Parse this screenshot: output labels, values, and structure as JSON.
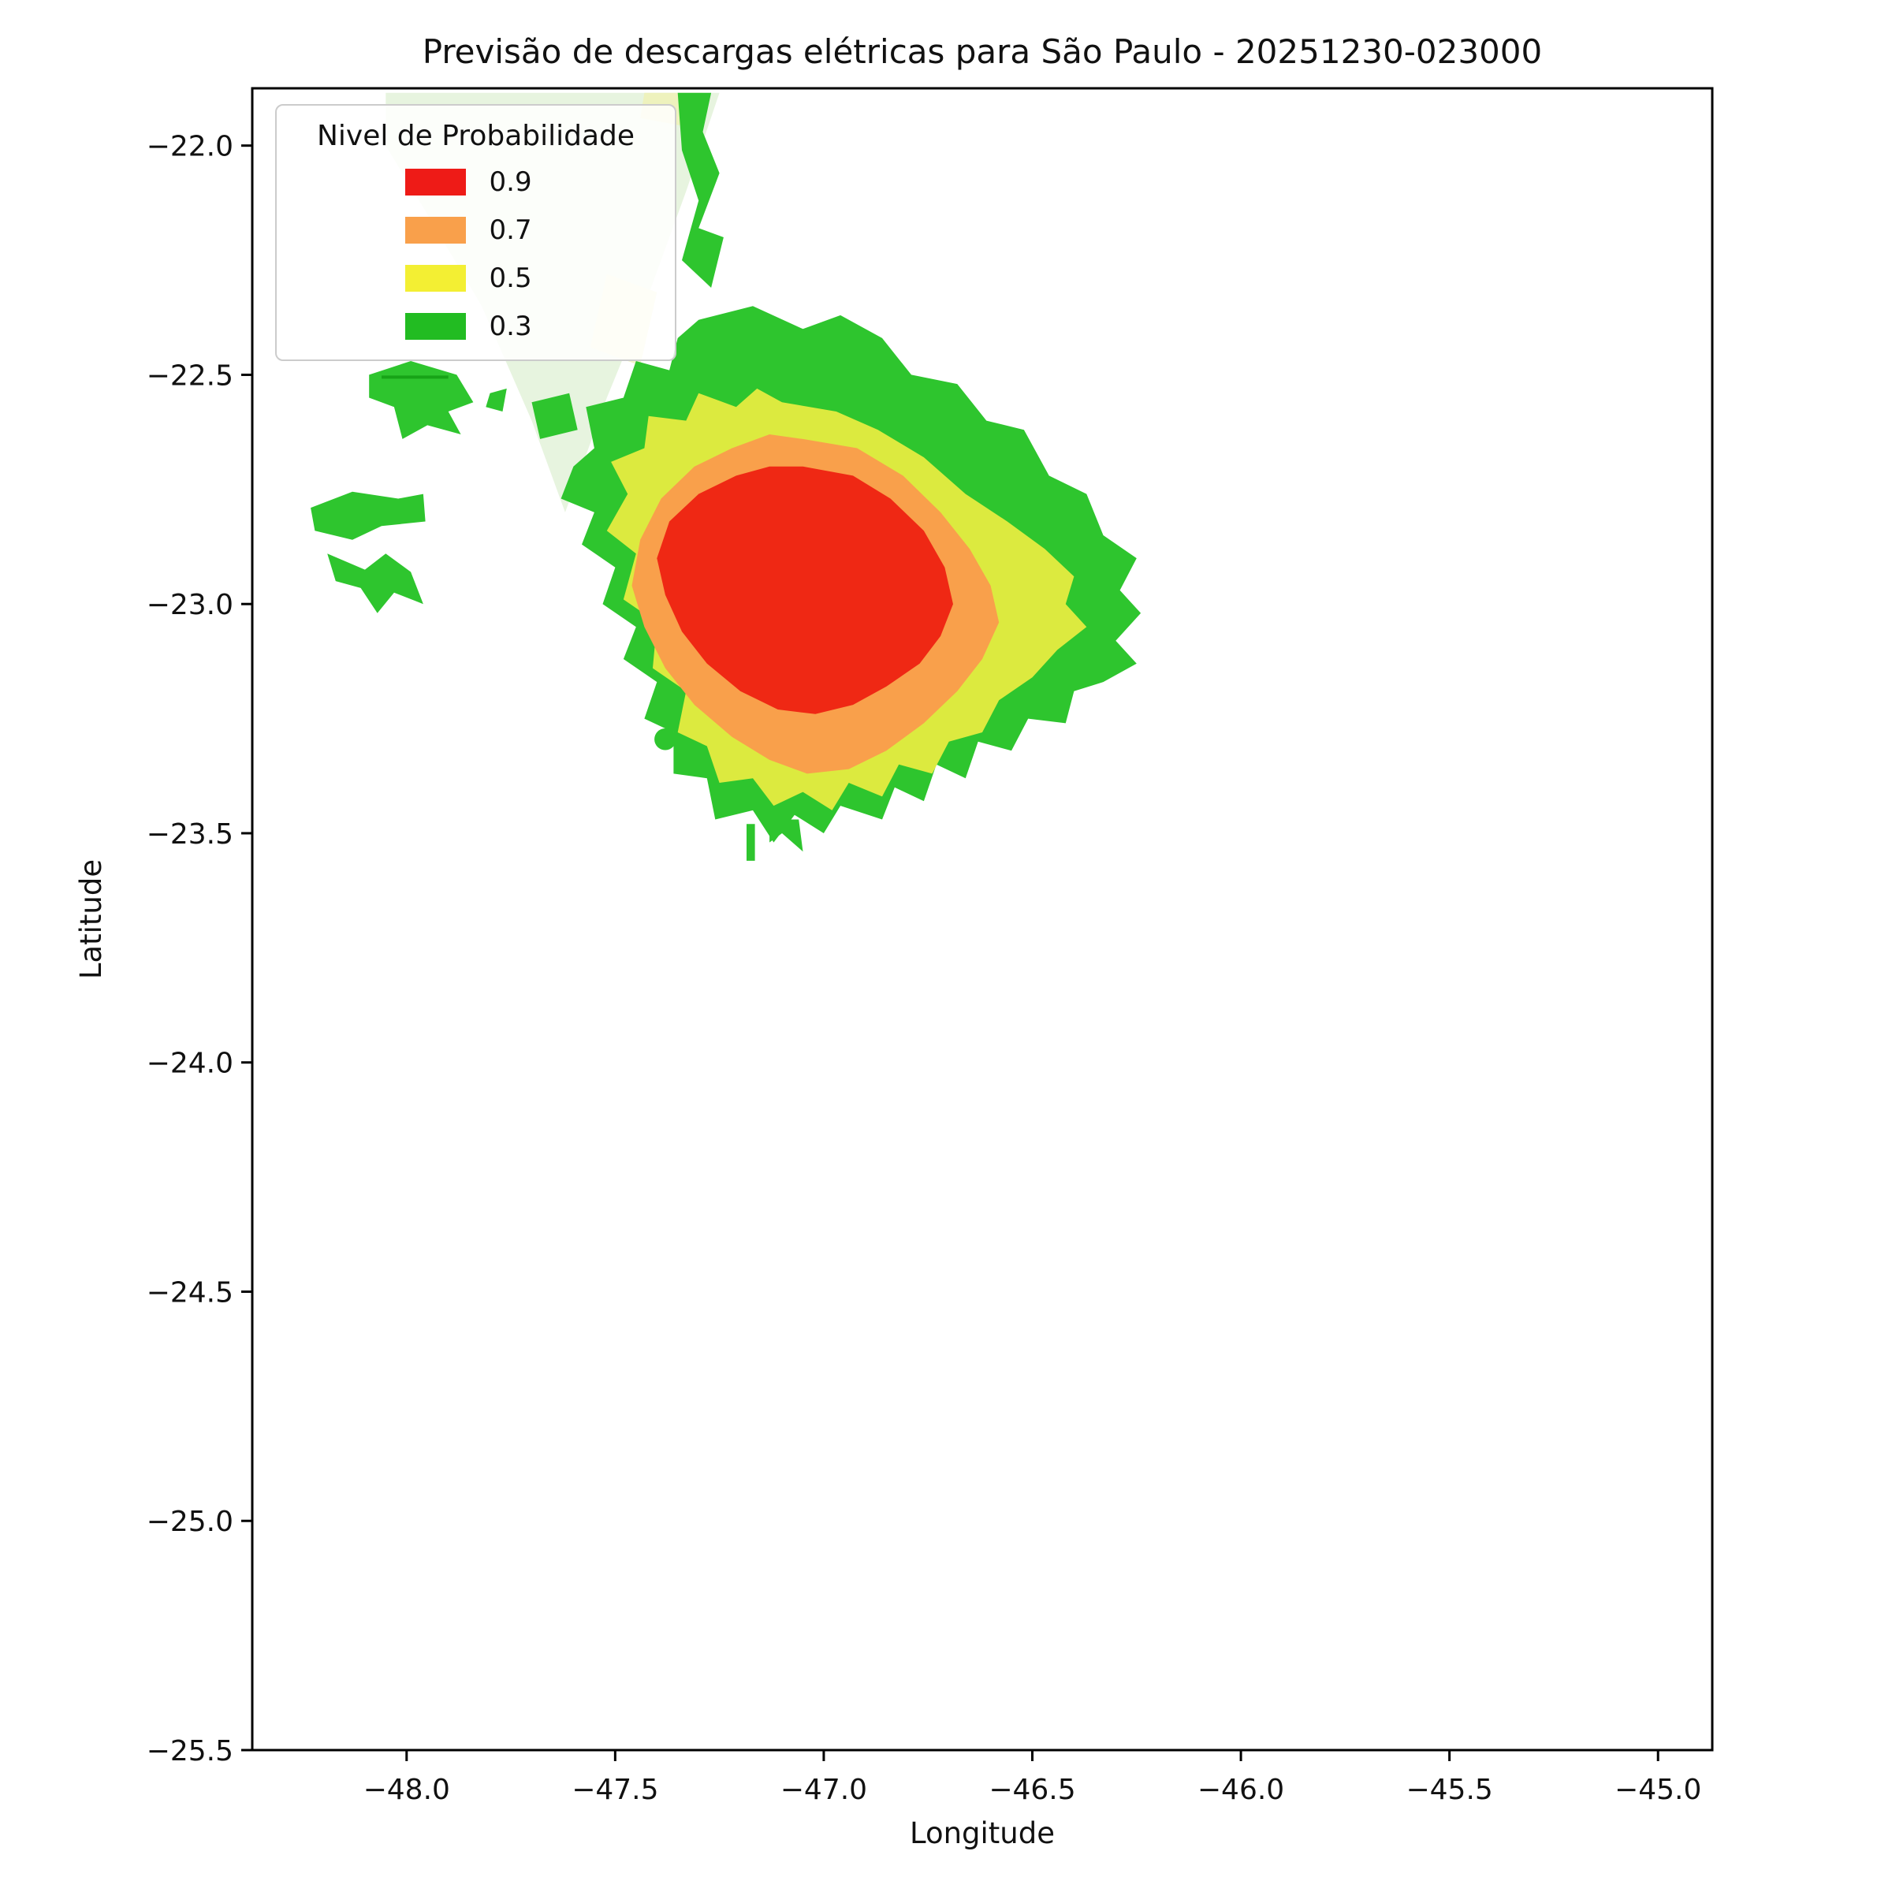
{
  "title": "Previsão de descargas elétricas para São Paulo - 20251230-023000",
  "axes": {
    "xlabel": "Longitude",
    "ylabel": "Latitude",
    "x_ticks": [
      {
        "value": -48.0,
        "label": "−48.0"
      },
      {
        "value": -47.5,
        "label": "−47.5"
      },
      {
        "value": -47.0,
        "label": "−47.0"
      },
      {
        "value": -46.5,
        "label": "−46.5"
      },
      {
        "value": -46.0,
        "label": "−46.0"
      },
      {
        "value": -45.5,
        "label": "−45.5"
      },
      {
        "value": -45.0,
        "label": "−45.0"
      }
    ],
    "y_ticks": [
      {
        "value": -22.0,
        "label": "−22.0"
      },
      {
        "value": -22.5,
        "label": "−22.5"
      },
      {
        "value": -23.0,
        "label": "−23.0"
      },
      {
        "value": -23.5,
        "label": "−23.5"
      },
      {
        "value": -24.0,
        "label": "−24.0"
      },
      {
        "value": -24.5,
        "label": "−24.5"
      },
      {
        "value": -25.0,
        "label": "−25.0"
      },
      {
        "value": -25.5,
        "label": "−25.5"
      }
    ]
  },
  "legend": {
    "title": "Nivel de Probabilidade",
    "items": [
      {
        "label": "0.9",
        "color": "#ee1b17"
      },
      {
        "label": "0.7",
        "color": "#f9a04b"
      },
      {
        "label": "0.5",
        "color": "#f3ef33"
      },
      {
        "label": "0.3",
        "color": "#22bc22"
      }
    ]
  },
  "chart_data": {
    "type": "heatmap",
    "subtype": "filled-contour-probability-map",
    "title": "Previsão de descargas elétricas para São Paulo - 20251230-023000",
    "xlabel": "Longitude",
    "ylabel": "Latitude",
    "xlim": [
      -48.37,
      -44.87
    ],
    "ylim": [
      -25.5,
      -21.875
    ],
    "grid": false,
    "legend_position": "upper-left",
    "levels": [
      0.3,
      0.5,
      0.7,
      0.9
    ],
    "level_colors": {
      "0.3": "#2ec52e",
      "0.5": "#dcea3f",
      "0.7": "#f9a04b",
      "0.9": "#ef2814"
    },
    "regions": [
      {
        "name": "wash-light-green",
        "level": null,
        "color": "#e7f4df",
        "shape": "polygon",
        "points": [
          [
            -48.05,
            -21.885
          ],
          [
            -47.25,
            -21.885
          ],
          [
            -47.33,
            -22.1
          ],
          [
            -47.43,
            -22.35
          ],
          [
            -47.52,
            -22.55
          ],
          [
            -47.62,
            -22.8
          ],
          [
            -47.7,
            -22.6
          ],
          [
            -47.82,
            -22.35
          ],
          [
            -47.95,
            -22.15
          ],
          [
            -48.05,
            -22.0
          ]
        ]
      },
      {
        "name": "wash-pale-yellow",
        "level": null,
        "color": "#f3f5cb",
        "shape": "polygon",
        "points": [
          [
            -47.52,
            -22.28
          ],
          [
            -47.4,
            -22.32
          ],
          [
            -47.44,
            -22.48
          ],
          [
            -47.56,
            -22.44
          ]
        ]
      },
      {
        "name": "top-pale-yellow",
        "level": null,
        "color": "#eef2bd",
        "shape": "polygon",
        "points": [
          [
            -47.43,
            -21.885
          ],
          [
            -47.29,
            -21.885
          ],
          [
            -47.32,
            -21.96
          ],
          [
            -47.44,
            -21.94
          ]
        ]
      },
      {
        "name": "top-green-strip",
        "level": 0.3,
        "color": "#2ec52e",
        "shape": "polygon",
        "points": [
          [
            -47.35,
            -21.885
          ],
          [
            -47.27,
            -21.885
          ],
          [
            -47.29,
            -21.97
          ],
          [
            -47.25,
            -22.06
          ],
          [
            -47.3,
            -22.18
          ],
          [
            -47.24,
            -22.2
          ],
          [
            -47.27,
            -22.31
          ],
          [
            -47.34,
            -22.25
          ],
          [
            -47.3,
            -22.12
          ],
          [
            -47.34,
            -22.01
          ]
        ]
      },
      {
        "name": "west-patch-a",
        "level": 0.3,
        "color": "#2ec52e",
        "shape": "polygon",
        "points": [
          [
            -48.09,
            -22.5
          ],
          [
            -47.99,
            -22.47
          ],
          [
            -47.88,
            -22.5
          ],
          [
            -47.84,
            -22.56
          ],
          [
            -47.9,
            -22.58
          ],
          [
            -47.87,
            -22.63
          ],
          [
            -47.95,
            -22.61
          ],
          [
            -48.01,
            -22.64
          ],
          [
            -48.03,
            -22.57
          ],
          [
            -48.09,
            -22.55
          ]
        ]
      },
      {
        "name": "west-patch-a2",
        "level": 0.3,
        "color": "#2ec52e",
        "shape": "polygon",
        "points": [
          [
            -47.8,
            -22.54
          ],
          [
            -47.76,
            -22.53
          ],
          [
            -47.77,
            -22.58
          ],
          [
            -47.81,
            -22.57
          ]
        ]
      },
      {
        "name": "lat-22-5-line",
        "level": 0.3,
        "color": "#17a317",
        "shape": "line",
        "stroke_width": 4,
        "points": [
          [
            -48.06,
            -22.505
          ],
          [
            -47.9,
            -22.505
          ]
        ]
      },
      {
        "name": "west-patch-b",
        "level": 0.3,
        "color": "#2ec52e",
        "shape": "polygon",
        "points": [
          [
            -48.23,
            -22.79
          ],
          [
            -48.13,
            -22.755
          ],
          [
            -48.02,
            -22.77
          ],
          [
            -47.96,
            -22.76
          ],
          [
            -47.955,
            -22.82
          ],
          [
            -48.06,
            -22.83
          ],
          [
            -48.13,
            -22.86
          ],
          [
            -48.22,
            -22.84
          ]
        ]
      },
      {
        "name": "west-patch-c",
        "level": 0.3,
        "color": "#2ec52e",
        "shape": "polygon",
        "points": [
          [
            -48.19,
            -22.89
          ],
          [
            -48.1,
            -22.925
          ],
          [
            -48.05,
            -22.89
          ],
          [
            -47.99,
            -22.93
          ],
          [
            -47.96,
            -23.0
          ],
          [
            -48.03,
            -22.975
          ],
          [
            -48.07,
            -23.02
          ],
          [
            -48.11,
            -22.965
          ],
          [
            -48.17,
            -22.95
          ]
        ]
      },
      {
        "name": "left-fragment",
        "level": 0.3,
        "color": "#2ec52e",
        "shape": "polygon",
        "points": [
          [
            -47.7,
            -22.56
          ],
          [
            -47.61,
            -22.54
          ],
          [
            -47.59,
            -22.62
          ],
          [
            -47.68,
            -22.64
          ]
        ]
      },
      {
        "name": "prob-region-0.3",
        "level": 0.3,
        "color": "#2ec52e",
        "shape": "polygon",
        "points": [
          [
            -47.3,
            -22.38
          ],
          [
            -47.17,
            -22.35
          ],
          [
            -47.05,
            -22.4
          ],
          [
            -46.96,
            -22.37
          ],
          [
            -46.86,
            -22.42
          ],
          [
            -46.79,
            -22.5
          ],
          [
            -46.68,
            -22.52
          ],
          [
            -46.61,
            -22.6
          ],
          [
            -46.52,
            -22.62
          ],
          [
            -46.46,
            -22.72
          ],
          [
            -46.37,
            -22.76
          ],
          [
            -46.33,
            -22.85
          ],
          [
            -46.25,
            -22.9
          ],
          [
            -46.29,
            -22.97
          ],
          [
            -46.24,
            -23.02
          ],
          [
            -46.3,
            -23.08
          ],
          [
            -46.25,
            -23.13
          ],
          [
            -46.33,
            -23.17
          ],
          [
            -46.4,
            -23.19
          ],
          [
            -46.42,
            -23.26
          ],
          [
            -46.51,
            -23.25
          ],
          [
            -46.55,
            -23.32
          ],
          [
            -46.63,
            -23.3
          ],
          [
            -46.66,
            -23.38
          ],
          [
            -46.73,
            -23.35
          ],
          [
            -46.76,
            -23.43
          ],
          [
            -46.83,
            -23.4
          ],
          [
            -46.86,
            -23.47
          ],
          [
            -46.96,
            -23.44
          ],
          [
            -47.0,
            -23.5
          ],
          [
            -47.07,
            -23.46
          ],
          [
            -47.12,
            -23.52
          ],
          [
            -47.17,
            -23.45
          ],
          [
            -47.26,
            -23.47
          ],
          [
            -47.28,
            -23.38
          ],
          [
            -47.36,
            -23.37
          ],
          [
            -47.36,
            -23.28
          ],
          [
            -47.43,
            -23.25
          ],
          [
            -47.4,
            -23.17
          ],
          [
            -47.48,
            -23.12
          ],
          [
            -47.45,
            -23.05
          ],
          [
            -47.53,
            -23.0
          ],
          [
            -47.5,
            -22.92
          ],
          [
            -47.58,
            -22.87
          ],
          [
            -47.55,
            -22.8
          ],
          [
            -47.63,
            -22.77
          ],
          [
            -47.6,
            -22.7
          ],
          [
            -47.55,
            -22.66
          ],
          [
            -47.57,
            -22.57
          ],
          [
            -47.48,
            -22.55
          ],
          [
            -47.45,
            -22.47
          ],
          [
            -47.37,
            -22.49
          ],
          [
            -47.35,
            -22.42
          ]
        ]
      },
      {
        "name": "prob-region-0.5",
        "level": 0.5,
        "color": "#dcea3f",
        "shape": "polygon",
        "points": [
          [
            -47.1,
            -22.56
          ],
          [
            -46.97,
            -22.58
          ],
          [
            -46.87,
            -22.62
          ],
          [
            -46.76,
            -22.68
          ],
          [
            -46.66,
            -22.76
          ],
          [
            -46.56,
            -22.82
          ],
          [
            -46.47,
            -22.88
          ],
          [
            -46.4,
            -22.94
          ],
          [
            -46.42,
            -23.0
          ],
          [
            -46.37,
            -23.05
          ],
          [
            -46.44,
            -23.1
          ],
          [
            -46.5,
            -23.16
          ],
          [
            -46.58,
            -23.21
          ],
          [
            -46.62,
            -23.28
          ],
          [
            -46.7,
            -23.3
          ],
          [
            -46.74,
            -23.37
          ],
          [
            -46.82,
            -23.35
          ],
          [
            -46.86,
            -23.42
          ],
          [
            -46.94,
            -23.39
          ],
          [
            -46.98,
            -23.45
          ],
          [
            -47.05,
            -23.41
          ],
          [
            -47.12,
            -23.44
          ],
          [
            -47.17,
            -23.38
          ],
          [
            -47.25,
            -23.39
          ],
          [
            -47.28,
            -23.31
          ],
          [
            -47.35,
            -23.28
          ],
          [
            -47.33,
            -23.19
          ],
          [
            -47.41,
            -23.14
          ],
          [
            -47.4,
            -23.04
          ],
          [
            -47.48,
            -22.99
          ],
          [
            -47.45,
            -22.89
          ],
          [
            -47.52,
            -22.84
          ],
          [
            -47.47,
            -22.76
          ],
          [
            -47.51,
            -22.69
          ],
          [
            -47.43,
            -22.66
          ],
          [
            -47.42,
            -22.59
          ],
          [
            -47.33,
            -22.6
          ],
          [
            -47.3,
            -22.54
          ],
          [
            -47.21,
            -22.57
          ],
          [
            -47.16,
            -22.53
          ]
        ]
      },
      {
        "name": "prob-region-0.7",
        "level": 0.7,
        "color": "#f9a04b",
        "shape": "polygon",
        "points": [
          [
            -47.05,
            -22.64
          ],
          [
            -46.92,
            -22.66
          ],
          [
            -46.81,
            -22.72
          ],
          [
            -46.72,
            -22.8
          ],
          [
            -46.65,
            -22.88
          ],
          [
            -46.6,
            -22.96
          ],
          [
            -46.58,
            -23.04
          ],
          [
            -46.62,
            -23.12
          ],
          [
            -46.68,
            -23.19
          ],
          [
            -46.76,
            -23.26
          ],
          [
            -46.85,
            -23.32
          ],
          [
            -46.94,
            -23.36
          ],
          [
            -47.04,
            -23.37
          ],
          [
            -47.13,
            -23.34
          ],
          [
            -47.22,
            -23.29
          ],
          [
            -47.31,
            -23.22
          ],
          [
            -47.38,
            -23.14
          ],
          [
            -47.43,
            -23.05
          ],
          [
            -47.46,
            -22.96
          ],
          [
            -47.44,
            -22.86
          ],
          [
            -47.39,
            -22.77
          ],
          [
            -47.31,
            -22.7
          ],
          [
            -47.22,
            -22.66
          ],
          [
            -47.13,
            -22.63
          ]
        ]
      },
      {
        "name": "prob-region-0.9",
        "level": 0.9,
        "color": "#ef2814",
        "shape": "polygon",
        "points": [
          [
            -47.05,
            -22.7
          ],
          [
            -46.93,
            -22.72
          ],
          [
            -46.84,
            -22.77
          ],
          [
            -46.76,
            -22.84
          ],
          [
            -46.71,
            -22.92
          ],
          [
            -46.69,
            -23.0
          ],
          [
            -46.72,
            -23.07
          ],
          [
            -46.77,
            -23.13
          ],
          [
            -46.85,
            -23.18
          ],
          [
            -46.93,
            -23.22
          ],
          [
            -47.02,
            -23.24
          ],
          [
            -47.11,
            -23.23
          ],
          [
            -47.2,
            -23.19
          ],
          [
            -47.28,
            -23.13
          ],
          [
            -47.34,
            -23.06
          ],
          [
            -47.38,
            -22.98
          ],
          [
            -47.4,
            -22.9
          ],
          [
            -47.37,
            -22.82
          ],
          [
            -47.3,
            -22.76
          ],
          [
            -47.21,
            -22.72
          ],
          [
            -47.13,
            -22.7
          ]
        ]
      },
      {
        "name": "small-dot",
        "level": 0.3,
        "color": "#2ec52e",
        "shape": "circle",
        "center": [
          -47.38,
          -23.295
        ],
        "radius_deg": 0.026
      },
      {
        "name": "bottom-tick",
        "level": 0.3,
        "color": "#2ec52e",
        "shape": "polygon",
        "points": [
          [
            -47.185,
            -23.48
          ],
          [
            -47.165,
            -23.48
          ],
          [
            -47.165,
            -23.56
          ],
          [
            -47.185,
            -23.56
          ]
        ]
      },
      {
        "name": "bottom-mark",
        "level": 0.3,
        "color": "#2ec52e",
        "shape": "polygon",
        "points": [
          [
            -47.13,
            -23.47
          ],
          [
            -47.06,
            -23.47
          ],
          [
            -47.05,
            -23.54
          ],
          [
            -47.1,
            -23.5
          ],
          [
            -47.13,
            -23.52
          ]
        ]
      }
    ]
  }
}
